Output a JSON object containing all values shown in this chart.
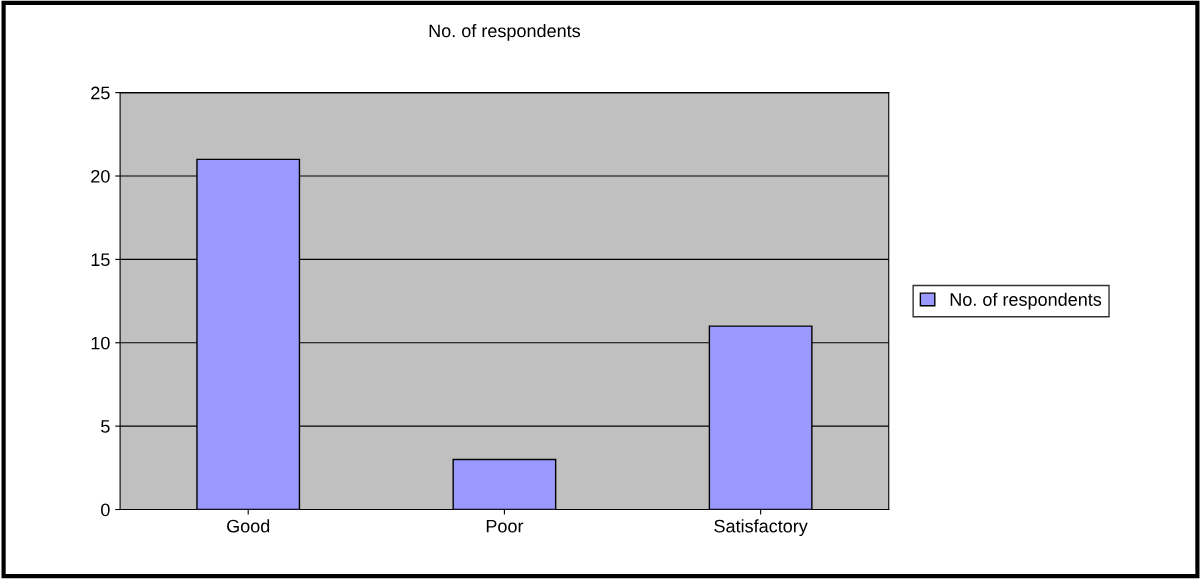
{
  "chart_data": {
    "type": "bar",
    "title": "No. of respondents",
    "categories": [
      "Good",
      "Poor",
      "Satisfactory"
    ],
    "series": [
      {
        "name": "No. of respondents",
        "color": "#9999ff",
        "values": [
          21,
          3,
          11
        ]
      }
    ],
    "ylim": [
      0,
      25
    ],
    "yticks": [
      0,
      5,
      10,
      15,
      20,
      25
    ],
    "grid": "y",
    "legend": "right"
  }
}
